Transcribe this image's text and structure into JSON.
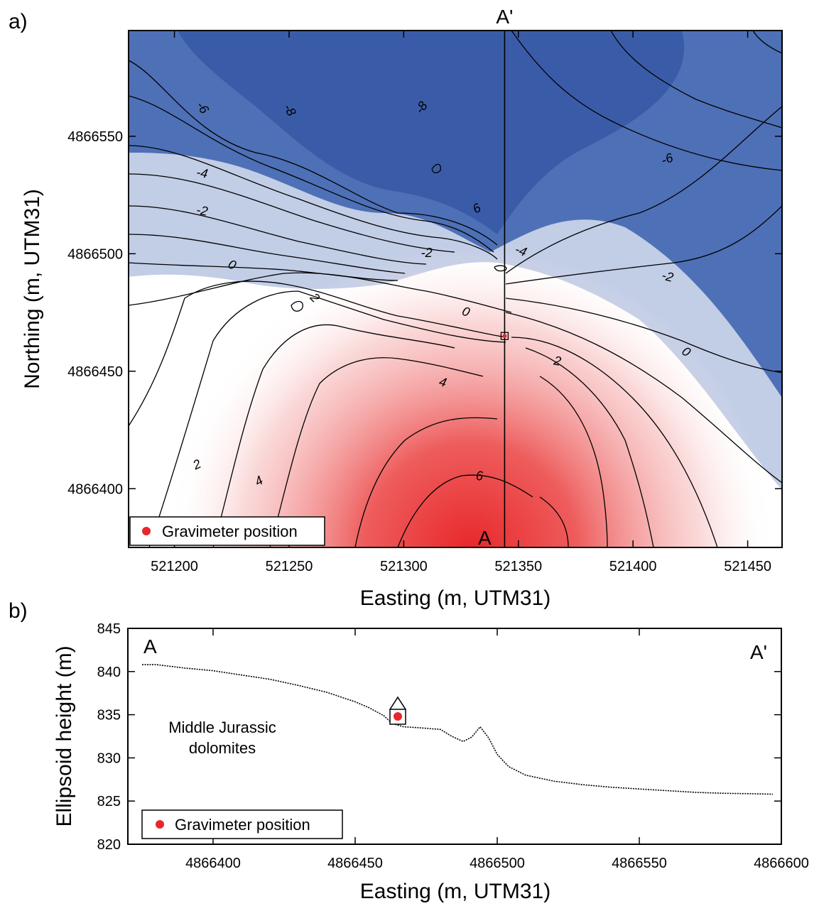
{
  "chart_data": [
    {
      "panel": "a)",
      "type": "heatmap",
      "subtype": "contour map",
      "xlabel": "Easting (m, UTM31)",
      "ylabel": "Northing (m, UTM31)",
      "xlim": [
        521180,
        521465
      ],
      "ylim": [
        4866375,
        4866595
      ],
      "xticks": [
        521200,
        521250,
        521300,
        521350,
        521400,
        521450
      ],
      "yticks": [
        4866400,
        4866450,
        4866500,
        4866550
      ],
      "colormap": {
        "negative": "#3a5fad",
        "zero": "#ffffff",
        "positive": "#e8272a"
      },
      "profile_line": {
        "easting": 521344,
        "start_label": "A",
        "end_label": "A'"
      },
      "gravimeter": {
        "easting": 521344,
        "northing": 4866465
      },
      "legend": {
        "label": "Gravimeter position",
        "color": "#e8272a",
        "position": "bottom-left"
      },
      "contour_labels": [
        {
          "text": "-6",
          "x": 521212,
          "y": 4866562,
          "rot": 55
        },
        {
          "text": "-8",
          "x": 521250,
          "y": 4866561,
          "rot": 60
        },
        {
          "text": "-8",
          "x": 521308,
          "y": 4866562,
          "rot": -55
        },
        {
          "text": "-6",
          "x": 521415,
          "y": 4866540,
          "rot": -20
        },
        {
          "text": "-4",
          "x": 521212,
          "y": 4866534,
          "rot": 10
        },
        {
          "text": "-2",
          "x": 521212,
          "y": 4866518,
          "rot": 10
        },
        {
          "text": "6",
          "x": 521332,
          "y": 4866519,
          "rot": -30
        },
        {
          "text": "-2",
          "x": 521310,
          "y": 4866500,
          "rot": 0
        },
        {
          "text": "-4",
          "x": 521351,
          "y": 4866501,
          "rot": 20
        },
        {
          "text": "0",
          "x": 521225,
          "y": 4866495,
          "rot": 25
        },
        {
          "text": "-2",
          "x": 521415,
          "y": 4866490,
          "rot": 15
        },
        {
          "text": "2",
          "x": 521261,
          "y": 4866481,
          "rot": 45
        },
        {
          "text": "0",
          "x": 521327,
          "y": 4866475,
          "rot": 20
        },
        {
          "text": "0",
          "x": 521423,
          "y": 4866458,
          "rot": 35
        },
        {
          "text": "2",
          "x": 521367,
          "y": 4866454,
          "rot": 10
        },
        {
          "text": "4",
          "x": 521317,
          "y": 4866445,
          "rot": 15
        },
        {
          "text": "2",
          "x": 521210,
          "y": 4866410,
          "rot": -25
        },
        {
          "text": "4",
          "x": 521237,
          "y": 4866403,
          "rot": -30
        },
        {
          "text": "6",
          "x": 521333,
          "y": 4866405,
          "rot": 0
        }
      ]
    },
    {
      "panel": "b)",
      "type": "line",
      "xlabel": "Easting (m, UTM31)",
      "ylabel": "Ellipsoid height (m)",
      "xlim": [
        4866370,
        4866600
      ],
      "ylim": [
        820,
        845
      ],
      "xticks": [
        4866400,
        4866450,
        4866500,
        4866550,
        4866600
      ],
      "yticks": [
        820,
        825,
        830,
        835,
        840,
        845
      ],
      "corner_labels": {
        "left": "A",
        "right": "A'"
      },
      "annotation": [
        "Middle Jurassic",
        "dolomites"
      ],
      "gravimeter": {
        "x": 4866465,
        "y": 834.8
      },
      "legend": {
        "label": "Gravimeter position",
        "color": "#e8272a",
        "position": "bottom-left"
      },
      "profile": {
        "x": [
          4866375,
          4866380,
          4866390,
          4866400,
          4866410,
          4866420,
          4866430,
          4866440,
          4866450,
          4866455,
          4866460,
          4866463,
          4866467,
          4866472,
          4866480,
          4866484,
          4866488,
          4866491,
          4866494,
          4866497,
          4866500,
          4866504,
          4866510,
          4866520,
          4866530,
          4866540,
          4866550,
          4866560,
          4866570,
          4866580,
          4866590,
          4866597
        ],
        "y": [
          840.8,
          840.8,
          840.4,
          840.1,
          839.6,
          839.1,
          838.4,
          837.6,
          836.5,
          835.8,
          834.9,
          834.0,
          833.6,
          833.5,
          833.3,
          832.5,
          831.9,
          832.4,
          833.6,
          832.3,
          830.4,
          829.0,
          828.0,
          827.3,
          826.9,
          826.6,
          826.4,
          826.2,
          826.0,
          825.9,
          825.85,
          825.8
        ]
      }
    }
  ]
}
